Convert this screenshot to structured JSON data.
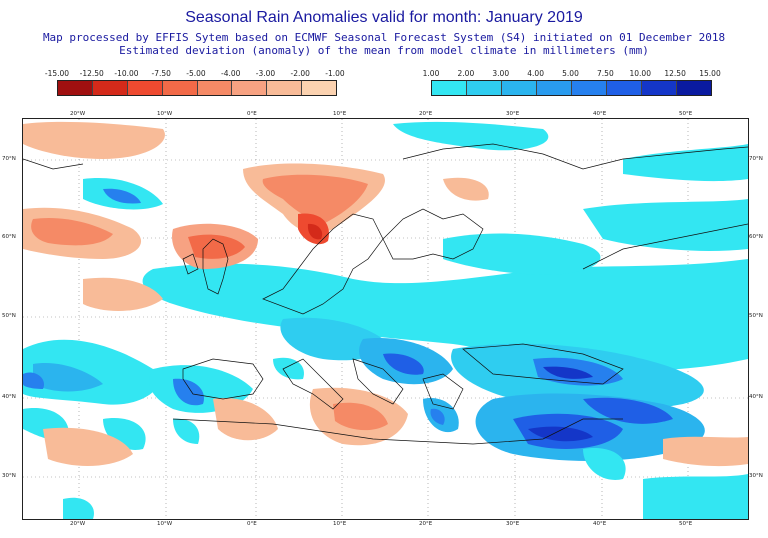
{
  "title": "Seasonal Rain Anomalies valid for month: January 2019",
  "subtitle_line1": "Map processed by EFFIS Sytem based on ECMWF Seasonal Forecast System (S4) initiated on 01 December 2018",
  "subtitle_line2": "Estimated deviation (anomaly) of the mean from model climate in millimeters (mm)",
  "colorbar_negative": {
    "ticks": [
      "-15.00",
      "-12.50",
      "-10.00",
      "-7.50",
      "-5.00",
      "-4.00",
      "-3.00",
      "-2.00",
      "-1.00"
    ],
    "colors": [
      "#a01010",
      "#d42a1a",
      "#ee4a30",
      "#f26a48",
      "#f58a66",
      "#f7a282",
      "#f8bb98",
      "#fbd2b0"
    ]
  },
  "colorbar_positive": {
    "ticks": [
      "1.00",
      "2.00",
      "3.00",
      "4.00",
      "5.00",
      "7.50",
      "10.00",
      "12.50",
      "15.00"
    ],
    "colors": [
      "#33e6f2",
      "#2fcdf0",
      "#2bb4ee",
      "#299bee",
      "#2680ee",
      "#1f5fe6",
      "#1436c8",
      "#0a1aa0"
    ]
  },
  "map": {
    "background_color": "#ffffff",
    "lon_labels": [
      "20°W",
      "10°W",
      "0°E",
      "10°E",
      "20°E",
      "30°E",
      "40°E",
      "50°E"
    ],
    "lat_labels": [
      "70°N",
      "60°N",
      "50°N",
      "40°N",
      "30°N"
    ]
  }
}
